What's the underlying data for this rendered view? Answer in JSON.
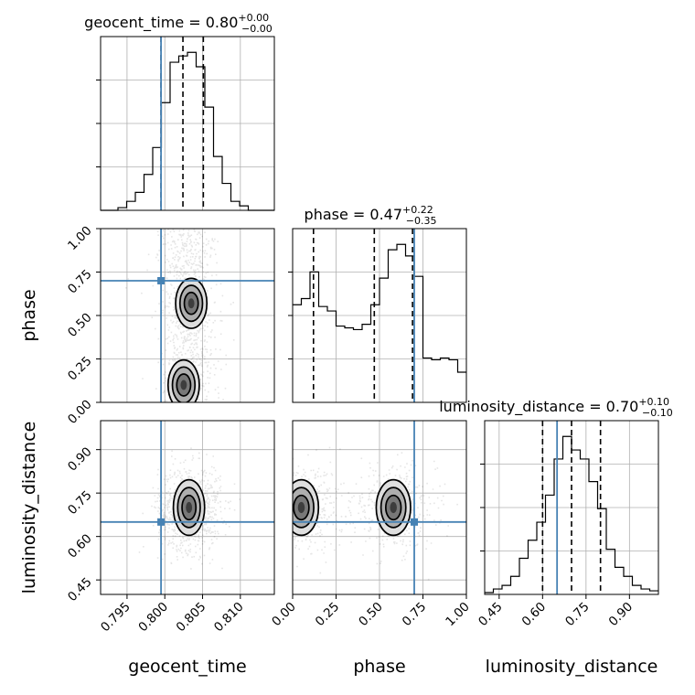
{
  "chart_data": {
    "type": "corner",
    "parameters": [
      "geocent_time",
      "phase",
      "luminosity_distance"
    ],
    "axis_ranges": {
      "geocent_time": [
        0.7915,
        0.8145
      ],
      "phase": [
        0.0,
        1.0
      ],
      "luminosity_distance": [
        0.4,
        1.0
      ]
    },
    "ticks": {
      "geocent_time": [
        "0.795",
        "0.800",
        "0.805",
        "0.810"
      ],
      "phase": [
        "0.00",
        "0.25",
        "0.50",
        "0.75",
        "1.00"
      ],
      "luminosity_distance": [
        "0.45",
        "0.60",
        "0.75",
        "0.90"
      ]
    },
    "truths": {
      "geocent_time": 0.7995,
      "phase": 0.7,
      "luminosity_distance": 0.65
    },
    "titles": [
      {
        "param": "geocent_time",
        "label": "geocent_time = 0.80",
        "plus": "+0.00",
        "minus": "−0.00"
      },
      {
        "param": "phase",
        "label": "phase = 0.47",
        "plus": "+0.22",
        "minus": "−0.35"
      },
      {
        "param": "luminosity_distance",
        "label": "luminosity_distance = 0.70",
        "plus": "+0.10",
        "minus": "−0.10"
      }
    ],
    "quantiles": {
      "geocent_time": [
        0.7995,
        0.8024,
        0.8051
      ],
      "phase": [
        0.12,
        0.47,
        0.69
      ],
      "luminosity_distance": [
        0.6,
        0.7,
        0.8
      ]
    },
    "histograms": {
      "geocent_time": {
        "edges": [
          0.7915,
          0.79265,
          0.7938,
          0.79495,
          0.7961,
          0.79725,
          0.7984,
          0.79955,
          0.8007,
          0.80185,
          0.803,
          0.80415,
          0.8053,
          0.80645,
          0.8076,
          0.80875,
          0.8099,
          0.81105,
          0.8122,
          0.81335,
          0.8145
        ],
        "counts": [
          0,
          0,
          3,
          10,
          20,
          40,
          70,
          120,
          165,
          172,
          176,
          160,
          115,
          60,
          30,
          10,
          5,
          0,
          0,
          0
        ]
      },
      "phase": {
        "edges": [
          0.0,
          0.05,
          0.1,
          0.15,
          0.2,
          0.25,
          0.3,
          0.35,
          0.4,
          0.45,
          0.5,
          0.55,
          0.6,
          0.65,
          0.7,
          0.75,
          0.8,
          0.85,
          0.9,
          0.95,
          1.0
        ],
        "counts": [
          110,
          117,
          147,
          108,
          103,
          86,
          84,
          82,
          88,
          110,
          140,
          172,
          178,
          165,
          142,
          50,
          48,
          50,
          48,
          34
        ]
      },
      "luminosity_distance": {
        "edges": [
          0.4,
          0.43,
          0.46,
          0.49,
          0.52,
          0.55,
          0.58,
          0.61,
          0.64,
          0.67,
          0.7,
          0.73,
          0.76,
          0.79,
          0.82,
          0.85,
          0.88,
          0.91,
          0.94,
          0.97,
          1.0
        ],
        "counts": [
          2,
          6,
          10,
          20,
          40,
          60,
          80,
          110,
          150,
          175,
          160,
          150,
          125,
          95,
          50,
          30,
          20,
          10,
          6,
          4
        ]
      }
    },
    "joint_modes": [
      {
        "x": "geocent_time",
        "y": "phase",
        "peaks": [
          [
            0.8035,
            0.57
          ],
          [
            0.8025,
            0.1
          ]
        ]
      },
      {
        "x": "geocent_time",
        "y": "luminosity_distance",
        "peaks": [
          [
            0.8032,
            0.7
          ]
        ]
      },
      {
        "x": "phase",
        "y": "luminosity_distance",
        "peaks": [
          [
            0.58,
            0.7
          ],
          [
            0.05,
            0.7
          ]
        ]
      }
    ],
    "grid": true
  }
}
